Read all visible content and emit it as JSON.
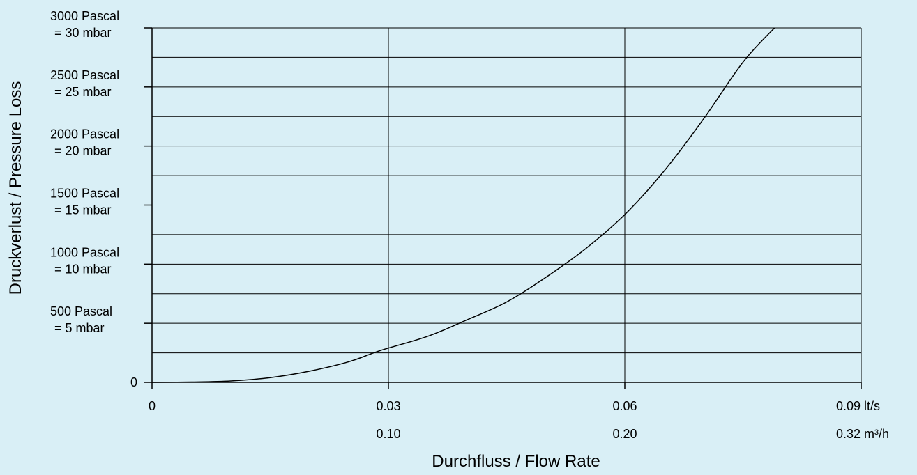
{
  "chart_data": {
    "type": "line",
    "ylabel": "Druckverlust / Pressure Loss",
    "xlabel": "Durchfluss / Flow Rate",
    "xlim": [
      0,
      0.09
    ],
    "ylim": [
      0,
      3000
    ],
    "grid": true,
    "x_units_primary": "lt/s",
    "x_units_secondary": "m³/h",
    "x_ticks": [
      {
        "value": 0,
        "label": "0",
        "secondary": ""
      },
      {
        "value": 0.03,
        "label": "0.03",
        "secondary": "0.10"
      },
      {
        "value": 0.06,
        "label": "0.06",
        "secondary": "0.20"
      },
      {
        "value": 0.09,
        "label": "0.09 lt/s",
        "secondary": "0.32 m³/h"
      }
    ],
    "y_ticks": [
      {
        "value": 0,
        "line1": "0",
        "line2": ""
      },
      {
        "value": 500,
        "line1": "500 Pascal",
        "line2": "= 5 mbar"
      },
      {
        "value": 1000,
        "line1": "1000 Pascal",
        "line2": "= 10 mbar"
      },
      {
        "value": 1500,
        "line1": "1500 Pascal",
        "line2": "= 15 mbar"
      },
      {
        "value": 2000,
        "line1": "2000 Pascal",
        "line2": "= 20 mbar"
      },
      {
        "value": 2500,
        "line1": "2500 Pascal",
        "line2": "= 25 mbar"
      },
      {
        "value": 3000,
        "line1": "3000 Pascal",
        "line2": "= 30 mbar"
      }
    ],
    "y_minor_grid": [
      250,
      750,
      1250,
      1750,
      2250,
      2750
    ],
    "series": [
      {
        "color": "#000000",
        "points": [
          [
            0,
            0
          ],
          [
            0.005,
            3
          ],
          [
            0.01,
            12
          ],
          [
            0.015,
            40
          ],
          [
            0.02,
            95
          ],
          [
            0.025,
            175
          ],
          [
            0.029,
            270
          ],
          [
            0.035,
            390
          ],
          [
            0.04,
            530
          ],
          [
            0.045,
            680
          ],
          [
            0.05,
            890
          ],
          [
            0.055,
            1130
          ],
          [
            0.06,
            1420
          ],
          [
            0.065,
            1790
          ],
          [
            0.07,
            2230
          ],
          [
            0.075,
            2710
          ],
          [
            0.079,
            3000
          ]
        ]
      }
    ]
  }
}
